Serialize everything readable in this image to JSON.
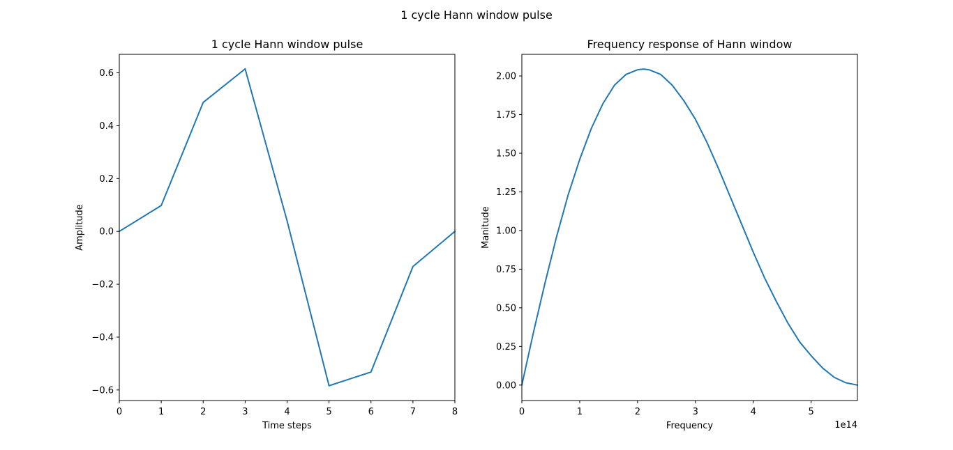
{
  "figure": {
    "suptitle": "1 cycle Hann window pulse"
  },
  "chart_data": [
    {
      "type": "line",
      "title": "1 cycle Hann window pulse",
      "xlabel": "Time steps",
      "ylabel": "Amplitude",
      "xlim": [
        0,
        8
      ],
      "ylim": [
        -0.64,
        0.67
      ],
      "xticks": [
        0,
        1,
        2,
        3,
        4,
        5,
        6,
        7,
        8
      ],
      "xtick_labels": [
        "0",
        "1",
        "2",
        "3",
        "4",
        "5",
        "6",
        "7",
        "8"
      ],
      "yticks": [
        -0.6,
        -0.4,
        -0.2,
        0.0,
        0.2,
        0.4,
        0.6
      ],
      "ytick_labels": [
        "−0.6",
        "−0.4",
        "−0.2",
        "0.0",
        "0.2",
        "0.4",
        "0.6"
      ],
      "offset_text": "",
      "grid": false,
      "series": [
        {
          "color": "#1f77b4",
          "x": [
            0,
            1,
            2,
            3,
            4,
            5,
            6,
            7,
            8
          ],
          "y": [
            0.0,
            0.098,
            0.488,
            0.615,
            0.04,
            -0.584,
            -0.532,
            -0.133,
            0.0
          ]
        }
      ]
    },
    {
      "type": "line",
      "title": "Frequency response of Hann window",
      "xlabel": "Frequency",
      "ylabel": "Manitude",
      "xlim": [
        0,
        580000000000000
      ],
      "ylim": [
        -0.1,
        2.14
      ],
      "xticks": [
        0,
        100000000000000,
        200000000000000,
        300000000000000,
        400000000000000,
        500000000000000
      ],
      "xtick_labels": [
        "0",
        "1",
        "2",
        "3",
        "4",
        "5"
      ],
      "yticks": [
        0.0,
        0.25,
        0.5,
        0.75,
        1.0,
        1.25,
        1.5,
        1.75,
        2.0
      ],
      "ytick_labels": [
        "0.00",
        "0.25",
        "0.50",
        "0.75",
        "1.00",
        "1.25",
        "1.50",
        "1.75",
        "2.00"
      ],
      "offset_text": "1e14",
      "grid": false,
      "series": [
        {
          "color": "#1f77b4",
          "x": [
            0,
            20000000000000,
            40000000000000,
            60000000000000,
            80000000000000,
            100000000000000,
            120000000000000,
            140000000000000,
            160000000000000,
            180000000000000,
            200000000000000,
            210000000000000,
            220000000000000,
            240000000000000,
            260000000000000,
            280000000000000,
            300000000000000,
            320000000000000,
            340000000000000,
            360000000000000,
            380000000000000,
            400000000000000,
            420000000000000,
            440000000000000,
            460000000000000,
            480000000000000,
            500000000000000,
            520000000000000,
            540000000000000,
            560000000000000,
            580000000000000
          ],
          "y": [
            0.0,
            0.34,
            0.66,
            0.96,
            1.23,
            1.46,
            1.66,
            1.82,
            1.94,
            2.01,
            2.04,
            2.045,
            2.04,
            2.01,
            1.94,
            1.84,
            1.72,
            1.57,
            1.4,
            1.22,
            1.04,
            0.86,
            0.69,
            0.54,
            0.4,
            0.28,
            0.19,
            0.11,
            0.05,
            0.015,
            0.0
          ]
        }
      ]
    }
  ]
}
